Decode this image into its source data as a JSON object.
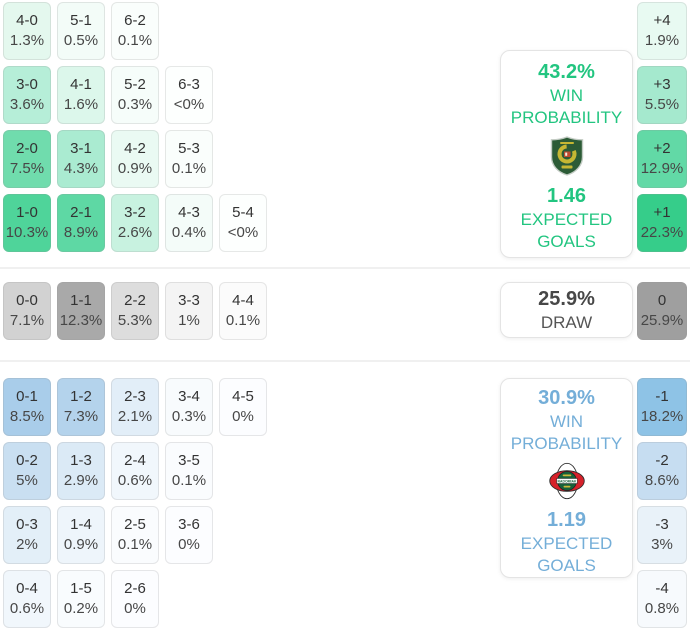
{
  "colors": {
    "home_accent": "#22c580",
    "away_accent": "#74aed8",
    "draw_strong_cell": "#9f9f9f",
    "home_strong_cell": "#36cd8a",
    "away_strong_cell": "#8ec3e6"
  },
  "sections": {
    "home": {
      "panel": {
        "win_pct": "43.2%",
        "win_label": "WIN PROBABILITY",
        "xg": "1.46",
        "xg_label": "EXPECTED GOALS",
        "crest_icon": "home-team-crest-icon"
      },
      "score_rows": [
        [
          {
            "score": "4-0",
            "pct": "1.3%",
            "bg": "#e4f8ee"
          },
          {
            "score": "5-1",
            "pct": "0.5%",
            "bg": "#f3fcf8"
          },
          {
            "score": "6-2",
            "pct": "0.1%",
            "bg": "#fafefc"
          }
        ],
        [
          {
            "score": "3-0",
            "pct": "3.6%",
            "bg": "#b6eed8"
          },
          {
            "score": "4-1",
            "pct": "1.6%",
            "bg": "#dcf7eb"
          },
          {
            "score": "5-2",
            "pct": "0.3%",
            "bg": "#f6fdfa"
          },
          {
            "score": "6-3",
            "pct": "<0%",
            "bg": "#fdfffe"
          }
        ],
        [
          {
            "score": "2-0",
            "pct": "7.5%",
            "bg": "#70dcad"
          },
          {
            "score": "3-1",
            "pct": "4.3%",
            "bg": "#aaebd1"
          },
          {
            "score": "4-2",
            "pct": "0.9%",
            "bg": "#eafaf3"
          },
          {
            "score": "5-3",
            "pct": "0.1%",
            "bg": "#fafefc"
          }
        ],
        [
          {
            "score": "1-0",
            "pct": "10.3%",
            "bg": "#4fd49a"
          },
          {
            "score": "2-1",
            "pct": "8.9%",
            "bg": "#5ed8a4"
          },
          {
            "score": "3-2",
            "pct": "2.6%",
            "bg": "#c8f2e0"
          },
          {
            "score": "4-3",
            "pct": "0.4%",
            "bg": "#f4fcf9"
          },
          {
            "score": "5-4",
            "pct": "<0%",
            "bg": "#fdfffe"
          }
        ]
      ],
      "diff_cells": [
        {
          "label": "+4",
          "pct": "1.9%",
          "bg": "#e8faf2"
        },
        {
          "label": "+3",
          "pct": "5.5%",
          "bg": "#a5e9ce"
        },
        {
          "label": "+2",
          "pct": "12.9%",
          "bg": "#62d9a6"
        },
        {
          "label": "+1",
          "pct": "22.3%",
          "bg": "#36cd8a"
        }
      ]
    },
    "draw": {
      "panel": {
        "pct": "25.9%",
        "label": "DRAW"
      },
      "score_rows": [
        [
          {
            "score": "0-0",
            "pct": "7.1%",
            "bg": "#d2d2d2"
          },
          {
            "score": "1-1",
            "pct": "12.3%",
            "bg": "#a9a9a9"
          },
          {
            "score": "2-2",
            "pct": "5.3%",
            "bg": "#dddddd"
          },
          {
            "score": "3-3",
            "pct": "1%",
            "bg": "#f4f4f4"
          },
          {
            "score": "4-4",
            "pct": "0.1%",
            "bg": "#fbfbfb"
          }
        ]
      ],
      "diff_cells": [
        {
          "label": "0",
          "pct": "25.9%",
          "bg": "#9f9f9f"
        }
      ]
    },
    "away": {
      "panel": {
        "win_pct": "30.9%",
        "win_label": "WIN PROBABILITY",
        "xg": "1.19",
        "xg_label": "EXPECTED GOALS",
        "crest_icon": "away-team-crest-icon",
        "crest_text": "RADOMIAK"
      },
      "score_rows": [
        [
          {
            "score": "0-1",
            "pct": "8.5%",
            "bg": "#a9cdea"
          },
          {
            "score": "1-2",
            "pct": "7.3%",
            "bg": "#b4d3ec"
          },
          {
            "score": "2-3",
            "pct": "2.1%",
            "bg": "#e2eef8"
          },
          {
            "score": "3-4",
            "pct": "0.3%",
            "bg": "#f8fbfd"
          },
          {
            "score": "4-5",
            "pct": "0%",
            "bg": "#fcfdff"
          }
        ],
        [
          {
            "score": "0-2",
            "pct": "5%",
            "bg": "#c9dff1"
          },
          {
            "score": "1-3",
            "pct": "2.9%",
            "bg": "#dbeaf6"
          },
          {
            "score": "2-4",
            "pct": "0.6%",
            "bg": "#f1f7fc"
          },
          {
            "score": "3-5",
            "pct": "0.1%",
            "bg": "#fafcfe"
          }
        ],
        [
          {
            "score": "0-3",
            "pct": "2%",
            "bg": "#e3eff8"
          },
          {
            "score": "1-4",
            "pct": "0.9%",
            "bg": "#eef5fb"
          },
          {
            "score": "2-5",
            "pct": "0.1%",
            "bg": "#fafcfe"
          },
          {
            "score": "3-6",
            "pct": "0%",
            "bg": "#fcfdff"
          }
        ],
        [
          {
            "score": "0-4",
            "pct": "0.6%",
            "bg": "#f1f7fc"
          },
          {
            "score": "1-5",
            "pct": "0.2%",
            "bg": "#f9fcfe"
          },
          {
            "score": "2-6",
            "pct": "0%",
            "bg": "#fcfdff"
          }
        ]
      ],
      "diff_cells": [
        {
          "label": "-1",
          "pct": "18.2%",
          "bg": "#8ec3e6"
        },
        {
          "label": "-2",
          "pct": "8.6%",
          "bg": "#c6ddf1"
        },
        {
          "label": "-3",
          "pct": "3%",
          "bg": "#e9f2f9"
        },
        {
          "label": "-4",
          "pct": "0.8%",
          "bg": "#f7fafd"
        }
      ]
    }
  },
  "chart_data": {
    "type": "heatmap",
    "title": "",
    "home_win": {
      "probability_pct": 43.2,
      "expected_goals": 1.46
    },
    "draw": {
      "probability_pct": 25.9
    },
    "away_win": {
      "probability_pct": 30.9,
      "expected_goals": 1.19
    },
    "score_probabilities_pct": {
      "4-0": 1.3,
      "5-1": 0.5,
      "6-2": 0.1,
      "3-0": 3.6,
      "4-1": 1.6,
      "5-2": 0.3,
      "6-3": "<0",
      "2-0": 7.5,
      "3-1": 4.3,
      "4-2": 0.9,
      "5-3": 0.1,
      "1-0": 10.3,
      "2-1": 8.9,
      "3-2": 2.6,
      "4-3": 0.4,
      "5-4": "<0",
      "0-0": 7.1,
      "1-1": 12.3,
      "2-2": 5.3,
      "3-3": 1,
      "4-4": 0.1,
      "0-1": 8.5,
      "1-2": 7.3,
      "2-3": 2.1,
      "3-4": 0.3,
      "4-5": 0,
      "0-2": 5,
      "1-3": 2.9,
      "2-4": 0.6,
      "3-5": 0.1,
      "0-3": 2,
      "1-4": 0.9,
      "2-5": 0.1,
      "3-6": 0,
      "0-4": 0.6,
      "1-5": 0.2,
      "2-6": 0
    },
    "goal_difference_pct": {
      "+4": 1.9,
      "+3": 5.5,
      "+2": 12.9,
      "+1": 22.3,
      "0": 25.9,
      "-1": 18.2,
      "-2": 8.6,
      "-3": 3,
      "-4": 0.8
    }
  }
}
